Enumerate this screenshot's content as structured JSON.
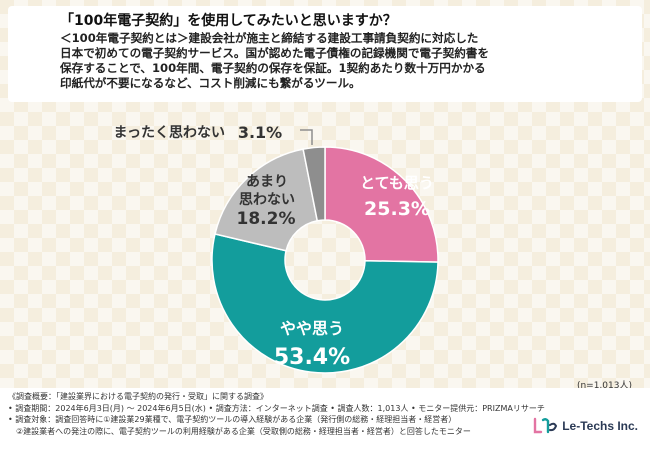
{
  "header": {
    "question": "「100年電子契約」を使用してみたいと思いますか？",
    "description": [
      "＜100年電子契約とは＞建設会社が施主と締結する建設工事請負契約に対応した",
      "日本で初めての電子契約サービス。国が認めた電子債権の記録機関で電子契約書を",
      "保存することで、100年間、電子契約の保存を保証。1契約あたり数十万円かかる",
      "印紙代が不要になるなど、コスト削減にも繋がるツール。"
    ]
  },
  "chart_data": {
    "type": "pie",
    "donut": true,
    "slices": [
      {
        "label": "とても思う",
        "value": 25.3,
        "color": "#e374a3"
      },
      {
        "label": "やや思う",
        "value": 53.4,
        "color": "#139d9c"
      },
      {
        "label": "あまり思わない",
        "value": 18.2,
        "color": "#bdbdbd"
      },
      {
        "label": "まったく思わない",
        "value": 3.1,
        "color": "#8e8e8e"
      }
    ],
    "value_suffix": "%"
  },
  "sample": "(n=1,013人)",
  "footer": {
    "notes": [
      "《調査概要：「建設業界における電子契約の発行・受取」に関する調査》",
      "• 調査期間：2024年6月3日(月) ～ 2024年6月5日(水) • 調査方法：インターネット調査 • 調査人数：1,013人 • モニター提供元：PRIZMAリサーチ",
      "• 調査対象：調査回答時に①建設業29業種で、電子契約ツールの導入経験がある企業（発行側の総務・経理担当者・経営者）",
      "　②建設業者への発注の際に、電子契約ツールの利用経験がある企業（受取側の総務・経理担当者・経営者）と回答したモニター"
    ],
    "logo_text": "Le-Techs Inc.",
    "logo_icon": "le-techs-logo-icon"
  }
}
